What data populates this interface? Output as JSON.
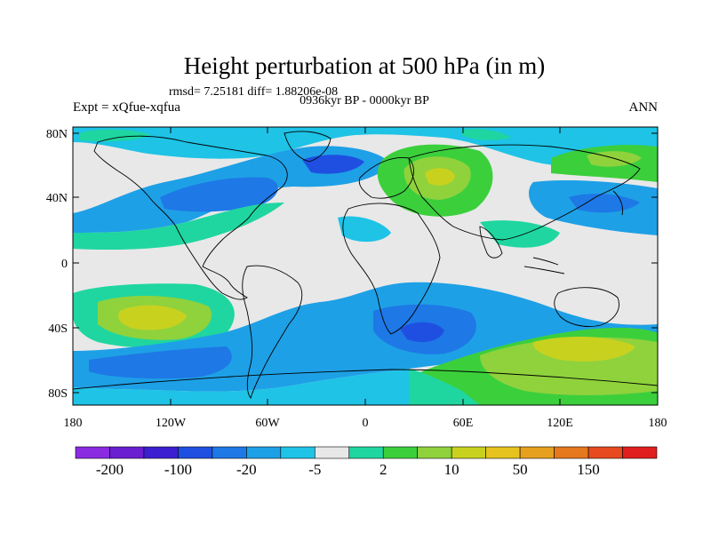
{
  "title": "Height perturbation at 500 hPa (in m)",
  "stats": "rmsd= 7.25181 diff= 1.88206e-08",
  "experiment": "Expt = xQfue-xqfua",
  "period": "0936kyr BP - 0000kyr BP",
  "season": "ANN",
  "lat_ticks": [
    "80N",
    "40N",
    "0",
    "40S",
    "80S"
  ],
  "lon_ticks": [
    "180",
    "120W",
    "60W",
    "0",
    "60E",
    "120E",
    "180"
  ],
  "colorbar": {
    "labels": [
      "-200",
      "-100",
      "-20",
      "-5",
      "2",
      "10",
      "50",
      "150"
    ],
    "colors": [
      "#8a2be2",
      "#6a1fd0",
      "#3c1fd0",
      "#1f4fe0",
      "#1e78e6",
      "#1ea0e6",
      "#1ec3e6",
      "#e8e8e8",
      "#1fd6a0",
      "#3ccf3c",
      "#8fd23c",
      "#c8d21e",
      "#e6c31e",
      "#e6a01e",
      "#e6781e",
      "#e64a1e",
      "#e01e1e"
    ]
  },
  "map_colors": {
    "neutral": "#e8e8e8",
    "lightblue": "#1ec3e6",
    "midblue": "#1ea0e6",
    "blue": "#1e78e6",
    "darkblue": "#1f4fe0",
    "teal": "#1fd6a0",
    "green": "#3ccf3c",
    "yellowgreen": "#8fd23c",
    "yellow": "#c8d21e",
    "gold": "#e6c31e"
  }
}
